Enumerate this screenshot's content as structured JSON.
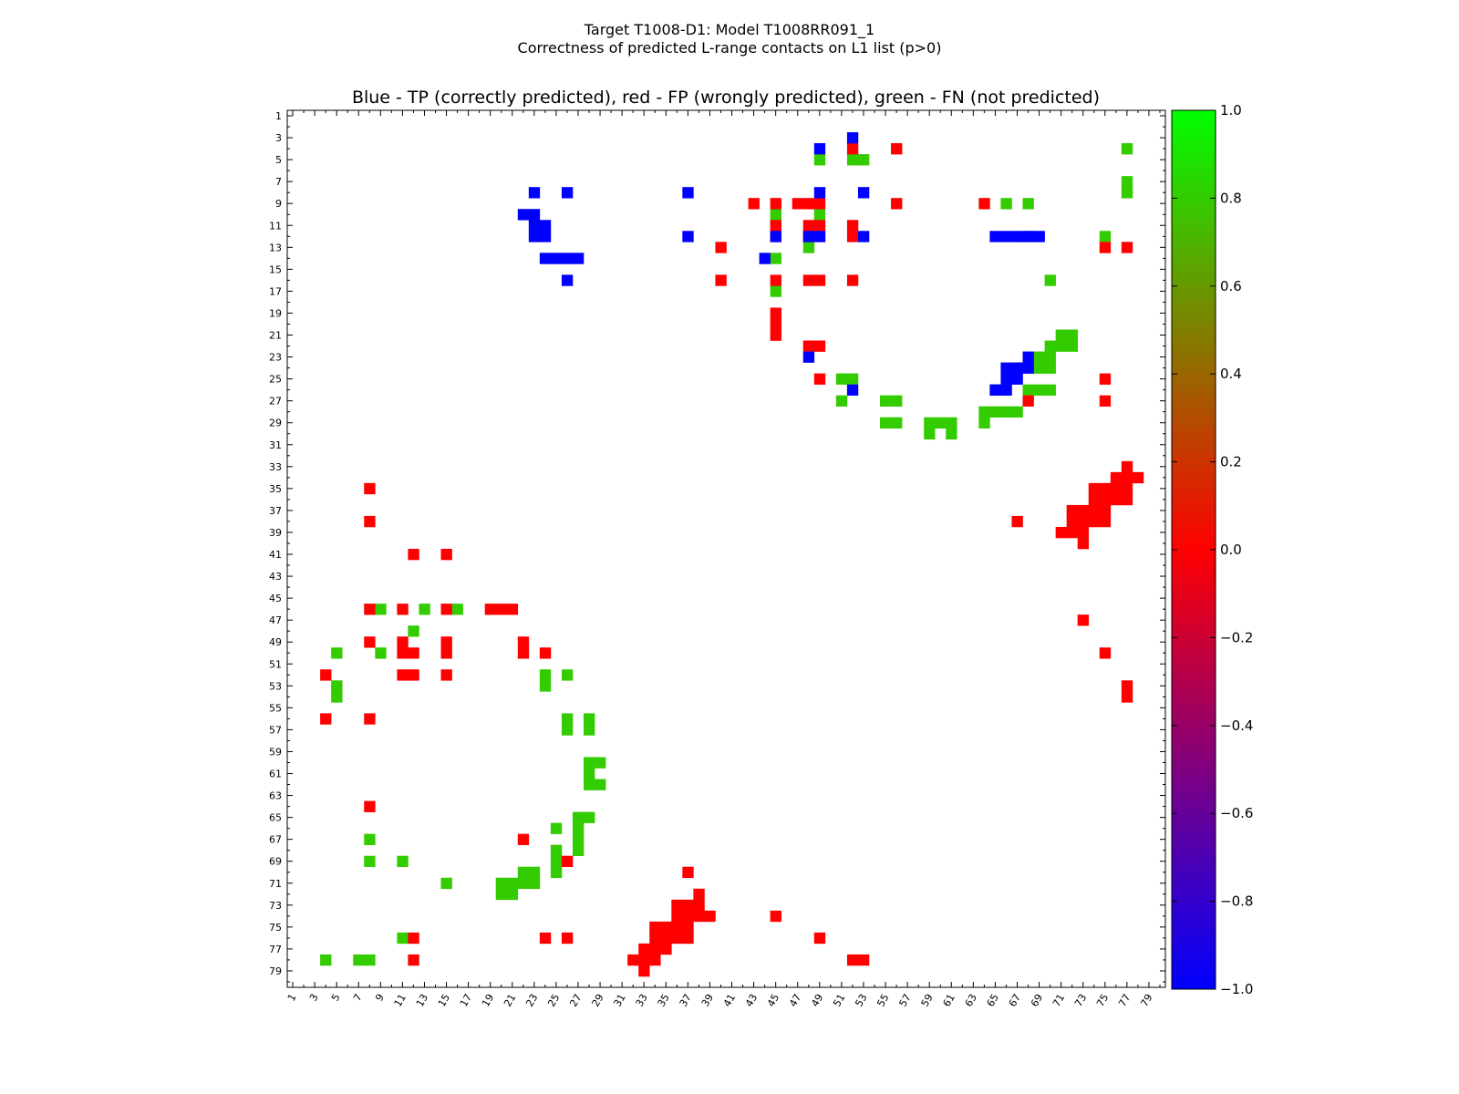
{
  "chart_data": {
    "type": "heatmap",
    "title": "Target T1008-D1: Model T1008RR091_1",
    "title_line2": "Correctness of predicted L-range contacts on L1 list (p>0)",
    "subtitle": "Blue - TP (correctly predicted), red - FP (wrongly predicted), green - FN (not predicted)",
    "xlim": [
      1,
      80
    ],
    "ylim": [
      1,
      80
    ],
    "x_ticks": [
      1,
      3,
      5,
      7,
      9,
      11,
      13,
      15,
      17,
      19,
      21,
      23,
      25,
      27,
      29,
      31,
      33,
      35,
      37,
      39,
      41,
      43,
      45,
      47,
      49,
      51,
      53,
      55,
      57,
      59,
      61,
      63,
      65,
      67,
      69,
      71,
      73,
      75,
      77,
      79
    ],
    "y_ticks": [
      1,
      3,
      5,
      7,
      9,
      11,
      13,
      15,
      17,
      19,
      21,
      23,
      25,
      27,
      29,
      31,
      33,
      35,
      37,
      39,
      41,
      43,
      45,
      47,
      49,
      51,
      53,
      55,
      57,
      59,
      61,
      63,
      65,
      67,
      69,
      71,
      73,
      75,
      77,
      79
    ],
    "colorbar": {
      "min": -1.0,
      "max": 1.0,
      "ticks": [
        "1.0",
        "0.8",
        "0.6",
        "0.4",
        "0.2",
        "0.0",
        "−0.2",
        "−0.4",
        "−0.6",
        "−0.8",
        "−1.0"
      ],
      "colors": [
        "#0000ff",
        "#ff0000",
        "#00ff00"
      ]
    },
    "categories": {
      "TP": {
        "value": -1.0,
        "color": "#0000ff"
      },
      "FP": {
        "value": 0.0,
        "color": "#ff0000"
      },
      "FN": {
        "value": 0.8,
        "color": "#33cc00"
      }
    },
    "cells_tp": [
      [
        4,
        49
      ],
      [
        8,
        49
      ],
      [
        8,
        37
      ],
      [
        8,
        53
      ],
      [
        12,
        37
      ],
      [
        12,
        45
      ],
      [
        23,
        68
      ],
      [
        24,
        66
      ],
      [
        24,
        67
      ],
      [
        24,
        68
      ],
      [
        25,
        66
      ],
      [
        25,
        67
      ],
      [
        26,
        65
      ],
      [
        26,
        66
      ],
      [
        23,
        48
      ],
      [
        26,
        52
      ],
      [
        3,
        52
      ],
      [
        14,
        44
      ],
      [
        8,
        26
      ],
      [
        8,
        23
      ],
      [
        16,
        26
      ],
      [
        14,
        24
      ],
      [
        14,
        25
      ],
      [
        14,
        26
      ],
      [
        14,
        27
      ],
      [
        12,
        23
      ],
      [
        12,
        24
      ],
      [
        11,
        23
      ],
      [
        11,
        24
      ],
      [
        10,
        22
      ],
      [
        10,
        23
      ],
      [
        12,
        49
      ],
      [
        12,
        48
      ],
      [
        12,
        53
      ],
      [
        12,
        68
      ],
      [
        12,
        67
      ],
      [
        12,
        66
      ],
      [
        12,
        65
      ],
      [
        12,
        69
      ]
    ],
    "cells_fp": [
      [
        4,
        52
      ],
      [
        4,
        56
      ],
      [
        9,
        43
      ],
      [
        9,
        47
      ],
      [
        9,
        45
      ],
      [
        9,
        48
      ],
      [
        9,
        49
      ],
      [
        9,
        56
      ],
      [
        9,
        64
      ],
      [
        13,
        40
      ],
      [
        11,
        45
      ],
      [
        12,
        45
      ],
      [
        11,
        48
      ],
      [
        11,
        49
      ],
      [
        12,
        48
      ],
      [
        12,
        49
      ],
      [
        11,
        52
      ],
      [
        12,
        52
      ],
      [
        13,
        75
      ],
      [
        13,
        77
      ],
      [
        16,
        40
      ],
      [
        16,
        45
      ],
      [
        16,
        48
      ],
      [
        16,
        49
      ],
      [
        16,
        52
      ],
      [
        19,
        45
      ],
      [
        20,
        45
      ],
      [
        21,
        45
      ],
      [
        22,
        48
      ],
      [
        22,
        49
      ],
      [
        24,
        67
      ],
      [
        25,
        49
      ],
      [
        27,
        68
      ],
      [
        27,
        75
      ],
      [
        25,
        75
      ],
      [
        33,
        77
      ],
      [
        34,
        76
      ],
      [
        34,
        77
      ],
      [
        34,
        78
      ],
      [
        35,
        74
      ],
      [
        35,
        75
      ],
      [
        35,
        76
      ],
      [
        35,
        77
      ],
      [
        36,
        74
      ],
      [
        36,
        75
      ],
      [
        36,
        76
      ],
      [
        36,
        77
      ],
      [
        37,
        72
      ],
      [
        37,
        73
      ],
      [
        37,
        74
      ],
      [
        37,
        75
      ],
      [
        38,
        72
      ],
      [
        38,
        73
      ],
      [
        38,
        74
      ],
      [
        38,
        75
      ],
      [
        39,
        71
      ],
      [
        39,
        72
      ],
      [
        39,
        73
      ],
      [
        40,
        73
      ],
      [
        38,
        67
      ],
      [
        47,
        73
      ],
      [
        50,
        75
      ],
      [
        53,
        77
      ],
      [
        54,
        77
      ],
      [
        35,
        8
      ],
      [
        38,
        8
      ],
      [
        41,
        12
      ],
      [
        41,
        15
      ],
      [
        46,
        8
      ],
      [
        46,
        11
      ],
      [
        46,
        15
      ],
      [
        46,
        19
      ],
      [
        46,
        20
      ],
      [
        46,
        21
      ],
      [
        49,
        8
      ],
      [
        49,
        11
      ],
      [
        50,
        11
      ],
      [
        50,
        12
      ],
      [
        49,
        15
      ],
      [
        50,
        15
      ],
      [
        49,
        22
      ],
      [
        50,
        22
      ],
      [
        50,
        24
      ],
      [
        52,
        4
      ],
      [
        52,
        11
      ],
      [
        52,
        12
      ],
      [
        52,
        15
      ],
      [
        56,
        4
      ],
      [
        56,
        8
      ],
      [
        64,
        8
      ],
      [
        67,
        22
      ],
      [
        69,
        26
      ],
      [
        70,
        37
      ],
      [
        72,
        38
      ],
      [
        73,
        36
      ],
      [
        73,
        37
      ],
      [
        73,
        38
      ],
      [
        74,
        36
      ],
      [
        74,
        37
      ],
      [
        74,
        38
      ],
      [
        74,
        39
      ],
      [
        74,
        45
      ],
      [
        75,
        34
      ],
      [
        75,
        35
      ],
      [
        75,
        36
      ],
      [
        75,
        37
      ],
      [
        76,
        34
      ],
      [
        76,
        35
      ],
      [
        76,
        36
      ],
      [
        76,
        37
      ],
      [
        76,
        12
      ],
      [
        76,
        24
      ],
      [
        76,
        26
      ],
      [
        76,
        49
      ],
      [
        77,
        33
      ],
      [
        77,
        34
      ],
      [
        77,
        35
      ],
      [
        78,
        32
      ],
      [
        78,
        33
      ],
      [
        78,
        34
      ],
      [
        78,
        12
      ],
      [
        78,
        52
      ],
      [
        78,
        53
      ],
      [
        79,
        33
      ]
    ],
    "cells_fn": [
      [
        5,
        49
      ],
      [
        5,
        52
      ],
      [
        5,
        53
      ],
      [
        4,
        77
      ],
      [
        7,
        77
      ],
      [
        8,
        77
      ],
      [
        9,
        66
      ],
      [
        9,
        68
      ],
      [
        10,
        45
      ],
      [
        10,
        49
      ],
      [
        12,
        68
      ],
      [
        12,
        75
      ],
      [
        13,
        48
      ],
      [
        14,
        45
      ],
      [
        16,
        70
      ],
      [
        17,
        45
      ],
      [
        21,
        71
      ],
      [
        21,
        72
      ],
      [
        22,
        70
      ],
      [
        22,
        71
      ],
      [
        22,
        72
      ],
      [
        23,
        69
      ],
      [
        23,
        70
      ],
      [
        24,
        69
      ],
      [
        24,
        70
      ],
      [
        25,
        51
      ],
      [
        25,
        52
      ],
      [
        26,
        65
      ],
      [
        26,
        68
      ],
      [
        26,
        69
      ],
      [
        26,
        70
      ],
      [
        27,
        51
      ],
      [
        27,
        55
      ],
      [
        27,
        56
      ],
      [
        28,
        64
      ],
      [
        28,
        65
      ],
      [
        28,
        66
      ],
      [
        28,
        67
      ],
      [
        29,
        55
      ],
      [
        29,
        56
      ],
      [
        29,
        59
      ],
      [
        29,
        60
      ],
      [
        29,
        61
      ],
      [
        29,
        64
      ],
      [
        30,
        59
      ],
      [
        30,
        61
      ],
      [
        46,
        9
      ],
      [
        46,
        13
      ],
      [
        46,
        16
      ],
      [
        48,
        12
      ],
      [
        50,
        5
      ],
      [
        50,
        9
      ],
      [
        52,
        24
      ],
      [
        52,
        26
      ],
      [
        53,
        24
      ],
      [
        53,
        5
      ],
      [
        54,
        5
      ],
      [
        56,
        26
      ],
      [
        56,
        28
      ],
      [
        57,
        26
      ],
      [
        57,
        28
      ],
      [
        60,
        28
      ],
      [
        60,
        29
      ],
      [
        61,
        28
      ],
      [
        62,
        28
      ],
      [
        62,
        29
      ],
      [
        65,
        27
      ],
      [
        65,
        28
      ],
      [
        66,
        25
      ],
      [
        66,
        27
      ],
      [
        67,
        8
      ],
      [
        67,
        27
      ],
      [
        68,
        25
      ],
      [
        68,
        27
      ],
      [
        69,
        8
      ],
      [
        69,
        11
      ],
      [
        69,
        25
      ],
      [
        70,
        22
      ],
      [
        70,
        23
      ],
      [
        70,
        25
      ],
      [
        71,
        21
      ],
      [
        71,
        22
      ],
      [
        71,
        23
      ],
      [
        72,
        20
      ],
      [
        72,
        21
      ],
      [
        71,
        20
      ],
      [
        71,
        15
      ],
      [
        76,
        11
      ],
      [
        78,
        4
      ],
      [
        78,
        7
      ],
      [
        78,
        8
      ]
    ]
  }
}
